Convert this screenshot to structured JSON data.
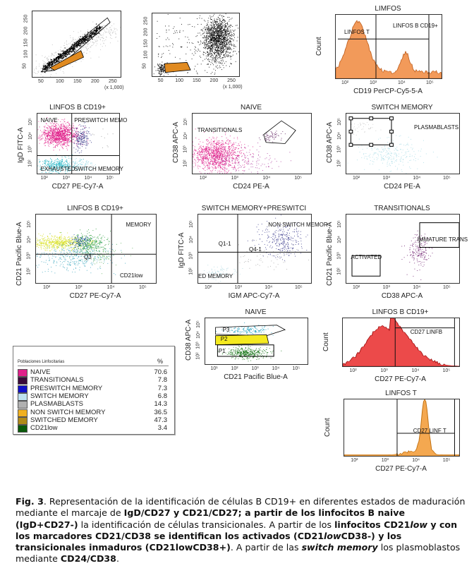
{
  "panels": [
    {
      "title": "",
      "xlabel": "(x 1,000)",
      "ylabel": "",
      "x_ticks": [
        "50",
        "100",
        "150",
        "200",
        "250"
      ],
      "y_ticks": [
        "50",
        "100",
        "150",
        "200",
        "250"
      ],
      "gates": []
    },
    {
      "title": "",
      "xlabel": "(x 1,000)",
      "ylabel": "",
      "x_ticks": [
        "50",
        "100",
        "150",
        "200",
        "250"
      ],
      "y_ticks": [
        "50",
        "100",
        "150",
        "200",
        "250"
      ],
      "gates": []
    },
    {
      "title": "LIMFOS",
      "xlabel": "CD19 PerCP-Cy5-5-A",
      "ylabel": "Count",
      "x_ticks": [
        "10²",
        "10³",
        "10⁴",
        "10⁵"
      ],
      "y_ticks": [],
      "gates": [
        "LINFOS T",
        "LINFOS B CD19+"
      ]
    },
    {
      "title": "LINFOS B CD19+",
      "xlabel": "CD27 PE-Cy7-A",
      "ylabel": "IgD FITC-A",
      "x_ticks": [
        "10²",
        "10³",
        "10⁴",
        "10⁵"
      ],
      "y_ticks": [
        "10²",
        "10³",
        "10⁴",
        "10⁵"
      ],
      "gates": [
        "NAIVE",
        "PRESWITCH MEMO",
        "EXHAUSTED",
        "SWITCH MEMORY"
      ]
    },
    {
      "title": "NAIVE",
      "xlabel": "CD24 PE-A",
      "ylabel": "CD38 APC-A",
      "x_ticks": [
        "10²",
        "10³",
        "10⁴",
        "10⁵"
      ],
      "y_ticks": [
        "10²",
        "10³",
        "10⁴",
        "10⁵"
      ],
      "gates": [
        "TRANSITIONALS"
      ]
    },
    {
      "title": "SWITCH MEMORY",
      "xlabel": "CD24 PE-A",
      "ylabel": "CD38 APC-A",
      "x_ticks": [
        "10²",
        "10³",
        "10⁴",
        "10⁵"
      ],
      "y_ticks": [
        "10²",
        "10³",
        "10⁴",
        "10⁵"
      ],
      "gates": [
        "PLASMABLASTS"
      ]
    },
    {
      "title": "LINFOS B CD19+",
      "xlabel": "CD27 PE-Cy7-A",
      "ylabel": "CD21 Pacific Blue-A",
      "x_ticks": [
        "10²",
        "10³",
        "10⁴",
        "10⁵"
      ],
      "y_ticks": [
        "10²",
        "10³",
        "10⁴",
        "10⁵"
      ],
      "gates": [
        "MEMORY",
        "Q3",
        "CD21low"
      ]
    },
    {
      "title": "SWITCH MEMORY+PRESWITCI",
      "xlabel": "IGM APC-Cy7-A",
      "ylabel": "IgD FITC-A",
      "x_ticks": [
        "10²",
        "10³",
        "10⁴",
        "10⁵"
      ],
      "y_ticks": [
        "10²",
        "10³",
        "10⁴",
        "10⁵"
      ],
      "gates": [
        "NON SWITCH MEMOR",
        "Q1-1",
        "Q4-1",
        "ED MEMORY"
      ]
    },
    {
      "title": "TRANSITIONALS",
      "xlabel": "CD38 APC-A",
      "ylabel": "CD21 Pacific Blue-A",
      "x_ticks": [
        "10²",
        "10³",
        "10⁴",
        "10⁵"
      ],
      "y_ticks": [
        "10²",
        "10³",
        "10⁴",
        "10⁵"
      ],
      "gates": [
        "IMMATURE TRANS",
        "ACTIVATED"
      ]
    },
    {
      "title": "NAIVE",
      "xlabel": "CD21 Pacific Blue-A",
      "ylabel": "CD38 APC-A",
      "x_ticks": [
        "10¹",
        "10²",
        "10³",
        "10⁴",
        "10⁵"
      ],
      "y_ticks": [
        "10²",
        "10³",
        "10⁴",
        "10⁵"
      ],
      "gates": [
        "P3",
        "P2",
        "P1"
      ]
    },
    {
      "title": "LINFOS B CD19+",
      "xlabel": "CD27 PE-Cy7-A",
      "ylabel": "Count",
      "x_ticks": [
        "10²",
        "10³",
        "10⁴",
        "10⁵"
      ],
      "y_ticks": [],
      "gates": [
        "CD27 LINFB"
      ]
    },
    {
      "title": "LINFOS T",
      "xlabel": "CD27 PE-Cy7-A",
      "ylabel": "Count",
      "x_ticks": [
        "10²",
        "10³",
        "10⁴",
        "10⁵"
      ],
      "y_ticks": [],
      "gates": [
        "CD27 LINF T"
      ]
    }
  ],
  "legend": {
    "title": "Poblaciones Linfocitarias",
    "value_header": "%",
    "rows": [
      {
        "name": "NAIVE",
        "value": "70.6",
        "color": "#e0208a"
      },
      {
        "name": "TRANSITIONALS",
        "value": "7.8",
        "color": "#3a0a3a"
      },
      {
        "name": "PRESWITCH MEMORY",
        "value": "7.3",
        "color": "#1010c8"
      },
      {
        "name": "SWITCH MEMORY",
        "value": "6.8",
        "color": "#bfe2f0"
      },
      {
        "name": "PLASMABLASTS",
        "value": "14.3",
        "color": "#b0b0b0"
      },
      {
        "name": "NON SWITCH MEMORY",
        "value": "36.5",
        "color": "#f0b020"
      },
      {
        "name": "SWITCHED MEMORY",
        "value": "47.3",
        "color": "#b08a18"
      },
      {
        "name": "CD21low",
        "value": "3.4",
        "color": "#0a5a0a"
      }
    ]
  },
  "caption": {
    "segments": [
      "Fig. 3",
      ". Representación de la identificación de células B CD19+ en diferentes estados de maduración mediante el marcaje de ",
      "IgD/CD27 y CD21/CD27; a partir de los linfocitos B naive (IgD+CD27-)",
      " la identificación de células transicionales. A partir de los ",
      "linfocitos CD21",
      "low",
      " y con los marcadores CD21/CD38 se identifican los activados (CD21",
      "low",
      "CD38-) y los transicionales inmaduros (CD21lowCD38+)",
      ". A partir de las ",
      "switch memory",
      " los plasmoblastos mediante ",
      "CD24/CD38",
      "."
    ]
  }
}
